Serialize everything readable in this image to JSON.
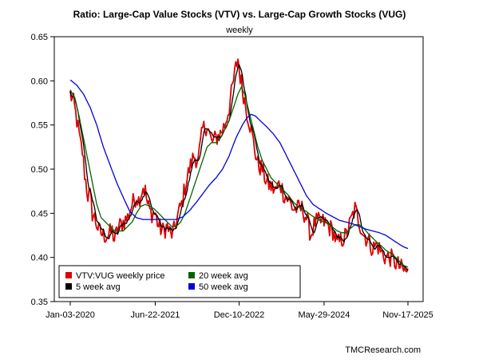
{
  "chart_data": {
    "type": "line",
    "title": "Ratio: Large-Cap Value Stocks (VTV) vs. Large-Cap Growth Stocks (VUG)",
    "subtitle": "weekly",
    "xlabel": "",
    "ylabel": "",
    "ylim": [
      0.35,
      0.65
    ],
    "yticks": [
      0.35,
      0.4,
      0.45,
      0.5,
      0.55,
      0.6,
      0.65
    ],
    "ytick_labels": [
      "0.35",
      "0.40",
      "0.45",
      "0.50",
      "0.55",
      "0.60",
      "0.65"
    ],
    "xlim": [
      0,
      306
    ],
    "xticks": [
      {
        "t": 0,
        "label": "Jan-03-2020"
      },
      {
        "t": 77,
        "label": "Jun-22-2021"
      },
      {
        "t": 153,
        "label": "Dec-10-2022"
      },
      {
        "t": 230,
        "label": "May-29-2024"
      },
      {
        "t": 306,
        "label": "Nov-17-2025"
      }
    ],
    "x_unit": "weeks since Jan-03-2020",
    "grid": false,
    "legend_position": "bottom-left",
    "watermark": "TMCResearch.com",
    "series_colors": {
      "price": "#dd0000",
      "ma5": "#000000",
      "ma20": "#006400",
      "ma50": "#0000dd"
    },
    "series": [
      {
        "name": "VTV:VUG weekly price",
        "key": "price",
        "anchors_note": "key weekly values (week index, ratio); weekly noise drawn between anchors",
        "anchors": [
          [
            0,
            0.585
          ],
          [
            3,
            0.575
          ],
          [
            6,
            0.555
          ],
          [
            9,
            0.53
          ],
          [
            11,
            0.52
          ],
          [
            13,
            0.495
          ],
          [
            16,
            0.47
          ],
          [
            18,
            0.47
          ],
          [
            20,
            0.45
          ],
          [
            22,
            0.445
          ],
          [
            26,
            0.43
          ],
          [
            30,
            0.425
          ],
          [
            34,
            0.425
          ],
          [
            38,
            0.43
          ],
          [
            40,
            0.42
          ],
          [
            44,
            0.435
          ],
          [
            48,
            0.44
          ],
          [
            52,
            0.445
          ],
          [
            56,
            0.46
          ],
          [
            60,
            0.47
          ],
          [
            62,
            0.465
          ],
          [
            66,
            0.48
          ],
          [
            68,
            0.475
          ],
          [
            70,
            0.46
          ],
          [
            73,
            0.45
          ],
          [
            77,
            0.45
          ],
          [
            80,
            0.435
          ],
          [
            84,
            0.43
          ],
          [
            88,
            0.435
          ],
          [
            91,
            0.425
          ],
          [
            94,
            0.43
          ],
          [
            98,
            0.45
          ],
          [
            101,
            0.46
          ],
          [
            104,
            0.48
          ],
          [
            108,
            0.5
          ],
          [
            112,
            0.515
          ],
          [
            116,
            0.51
          ],
          [
            120,
            0.545
          ],
          [
            124,
            0.55
          ],
          [
            128,
            0.53
          ],
          [
            132,
            0.535
          ],
          [
            136,
            0.54
          ],
          [
            140,
            0.55
          ],
          [
            144,
            0.57
          ],
          [
            148,
            0.6
          ],
          [
            150,
            0.615
          ],
          [
            152,
            0.625
          ],
          [
            154,
            0.605
          ],
          [
            157,
            0.585
          ],
          [
            160,
            0.565
          ],
          [
            163,
            0.55
          ],
          [
            166,
            0.53
          ],
          [
            170,
            0.505
          ],
          [
            174,
            0.5
          ],
          [
            178,
            0.485
          ],
          [
            182,
            0.48
          ],
          [
            186,
            0.475
          ],
          [
            190,
            0.485
          ],
          [
            194,
            0.47
          ],
          [
            198,
            0.465
          ],
          [
            202,
            0.455
          ],
          [
            206,
            0.455
          ],
          [
            210,
            0.455
          ],
          [
            214,
            0.445
          ],
          [
            218,
            0.425
          ],
          [
            222,
            0.44
          ],
          [
            226,
            0.44
          ],
          [
            230,
            0.44
          ],
          [
            234,
            0.435
          ],
          [
            238,
            0.43
          ],
          [
            242,
            0.415
          ],
          [
            246,
            0.42
          ],
          [
            250,
            0.425
          ],
          [
            254,
            0.44
          ],
          [
            258,
            0.455
          ],
          [
            262,
            0.44
          ],
          [
            266,
            0.425
          ],
          [
            270,
            0.42
          ],
          [
            274,
            0.41
          ],
          [
            278,
            0.415
          ],
          [
            282,
            0.405
          ],
          [
            286,
            0.4
          ],
          [
            290,
            0.4
          ],
          [
            294,
            0.395
          ],
          [
            298,
            0.39
          ],
          [
            302,
            0.385
          ],
          [
            306,
            0.383
          ]
        ]
      },
      {
        "name": "5 week avg",
        "key": "ma5",
        "window": 5
      },
      {
        "name": "20 week avg",
        "key": "ma20",
        "anchors": [
          [
            0,
            0.59
          ],
          [
            4,
            0.58
          ],
          [
            8,
            0.56
          ],
          [
            12,
            0.535
          ],
          [
            16,
            0.51
          ],
          [
            20,
            0.485
          ],
          [
            24,
            0.46
          ],
          [
            28,
            0.445
          ],
          [
            32,
            0.44
          ],
          [
            36,
            0.435
          ],
          [
            40,
            0.43
          ],
          [
            44,
            0.43
          ],
          [
            48,
            0.43
          ],
          [
            52,
            0.435
          ],
          [
            56,
            0.44
          ],
          [
            60,
            0.45
          ],
          [
            64,
            0.458
          ],
          [
            68,
            0.46
          ],
          [
            72,
            0.458
          ],
          [
            76,
            0.455
          ],
          [
            80,
            0.45
          ],
          [
            84,
            0.445
          ],
          [
            88,
            0.44
          ],
          [
            92,
            0.435
          ],
          [
            96,
            0.435
          ],
          [
            100,
            0.44
          ],
          [
            104,
            0.45
          ],
          [
            108,
            0.465
          ],
          [
            112,
            0.48
          ],
          [
            116,
            0.495
          ],
          [
            120,
            0.51
          ],
          [
            124,
            0.525
          ],
          [
            128,
            0.53
          ],
          [
            132,
            0.53
          ],
          [
            136,
            0.535
          ],
          [
            140,
            0.545
          ],
          [
            144,
            0.555
          ],
          [
            148,
            0.57
          ],
          [
            152,
            0.585
          ],
          [
            155,
            0.593
          ],
          [
            158,
            0.585
          ],
          [
            162,
            0.565
          ],
          [
            166,
            0.545
          ],
          [
            170,
            0.525
          ],
          [
            174,
            0.51
          ],
          [
            178,
            0.5
          ],
          [
            182,
            0.49
          ],
          [
            186,
            0.485
          ],
          [
            190,
            0.48
          ],
          [
            194,
            0.475
          ],
          [
            198,
            0.47
          ],
          [
            202,
            0.463
          ],
          [
            206,
            0.458
          ],
          [
            210,
            0.455
          ],
          [
            214,
            0.452
          ],
          [
            218,
            0.448
          ],
          [
            222,
            0.445
          ],
          [
            226,
            0.442
          ],
          [
            230,
            0.44
          ],
          [
            234,
            0.438
          ],
          [
            238,
            0.434
          ],
          [
            242,
            0.43
          ],
          [
            246,
            0.428
          ],
          [
            250,
            0.428
          ],
          [
            254,
            0.433
          ],
          [
            258,
            0.437
          ],
          [
            262,
            0.437
          ],
          [
            266,
            0.433
          ],
          [
            270,
            0.427
          ],
          [
            274,
            0.422
          ],
          [
            278,
            0.417
          ],
          [
            282,
            0.413
          ],
          [
            286,
            0.408
          ],
          [
            290,
            0.405
          ],
          [
            294,
            0.401
          ],
          [
            298,
            0.396
          ],
          [
            302,
            0.391
          ],
          [
            306,
            0.389
          ]
        ]
      },
      {
        "name": "50 week avg",
        "key": "ma50",
        "anchors": [
          [
            0,
            0.601
          ],
          [
            6,
            0.595
          ],
          [
            12,
            0.585
          ],
          [
            18,
            0.57
          ],
          [
            24,
            0.55
          ],
          [
            30,
            0.525
          ],
          [
            36,
            0.505
          ],
          [
            42,
            0.485
          ],
          [
            48,
            0.468
          ],
          [
            54,
            0.452
          ],
          [
            60,
            0.445
          ],
          [
            66,
            0.443
          ],
          [
            72,
            0.443
          ],
          [
            78,
            0.443
          ],
          [
            84,
            0.443
          ],
          [
            90,
            0.443
          ],
          [
            96,
            0.443
          ],
          [
            102,
            0.446
          ],
          [
            108,
            0.453
          ],
          [
            114,
            0.462
          ],
          [
            120,
            0.472
          ],
          [
            126,
            0.482
          ],
          [
            132,
            0.49
          ],
          [
            138,
            0.5
          ],
          [
            144,
            0.515
          ],
          [
            150,
            0.535
          ],
          [
            156,
            0.55
          ],
          [
            160,
            0.558
          ],
          [
            164,
            0.562
          ],
          [
            168,
            0.56
          ],
          [
            172,
            0.555
          ],
          [
            178,
            0.548
          ],
          [
            184,
            0.54
          ],
          [
            190,
            0.53
          ],
          [
            196,
            0.515
          ],
          [
            202,
            0.5
          ],
          [
            208,
            0.485
          ],
          [
            214,
            0.47
          ],
          [
            220,
            0.46
          ],
          [
            226,
            0.455
          ],
          [
            232,
            0.45
          ],
          [
            238,
            0.446
          ],
          [
            244,
            0.442
          ],
          [
            250,
            0.44
          ],
          [
            256,
            0.438
          ],
          [
            262,
            0.435
          ],
          [
            268,
            0.432
          ],
          [
            274,
            0.43
          ],
          [
            280,
            0.428
          ],
          [
            286,
            0.425
          ],
          [
            292,
            0.42
          ],
          [
            298,
            0.415
          ],
          [
            302,
            0.412
          ],
          [
            306,
            0.41
          ]
        ]
      }
    ]
  }
}
